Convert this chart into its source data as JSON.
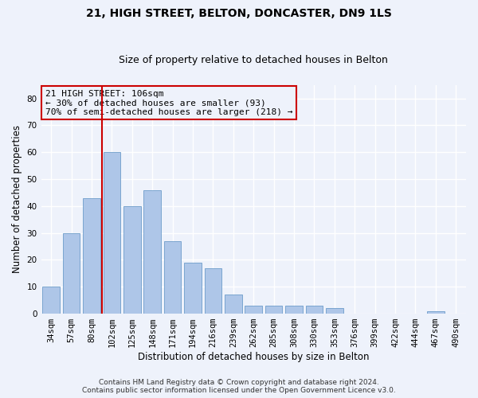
{
  "title": "21, HIGH STREET, BELTON, DONCASTER, DN9 1LS",
  "subtitle": "Size of property relative to detached houses in Belton",
  "xlabel": "Distribution of detached houses by size in Belton",
  "ylabel": "Number of detached properties",
  "categories": [
    "34sqm",
    "57sqm",
    "80sqm",
    "102sqm",
    "125sqm",
    "148sqm",
    "171sqm",
    "194sqm",
    "216sqm",
    "239sqm",
    "262sqm",
    "285sqm",
    "308sqm",
    "330sqm",
    "353sqm",
    "376sqm",
    "399sqm",
    "422sqm",
    "444sqm",
    "467sqm",
    "490sqm"
  ],
  "values": [
    10,
    30,
    43,
    60,
    40,
    46,
    27,
    19,
    17,
    7,
    3,
    3,
    3,
    3,
    2,
    0,
    0,
    0,
    0,
    1,
    0
  ],
  "bar_color": "#aec6e8",
  "bar_edge_color": "#5a8fc2",
  "red_line_x": 2.5,
  "red_line_color": "#cc0000",
  "ylim": [
    0,
    85
  ],
  "yticks": [
    0,
    10,
    20,
    30,
    40,
    50,
    60,
    70,
    80
  ],
  "annotation_title": "21 HIGH STREET: 106sqm",
  "annotation_line1": "← 30% of detached houses are smaller (93)",
  "annotation_line2": "70% of semi-detached houses are larger (218) →",
  "annotation_box_color": "#cc0000",
  "footer_line1": "Contains HM Land Registry data © Crown copyright and database right 2024.",
  "footer_line2": "Contains public sector information licensed under the Open Government Licence v3.0.",
  "background_color": "#eef2fb",
  "grid_color": "#ffffff",
  "title_fontsize": 10,
  "subtitle_fontsize": 9,
  "axis_label_fontsize": 8.5,
  "tick_fontsize": 7.5,
  "annotation_fontsize": 8,
  "footer_fontsize": 6.5
}
